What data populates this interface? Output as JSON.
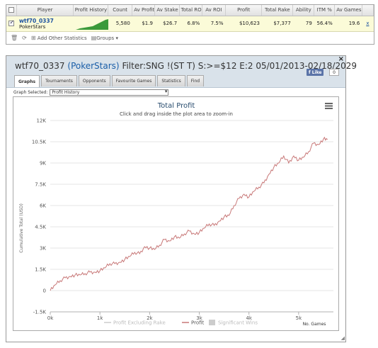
{
  "stats_table": {
    "headers": [
      "Player",
      "Profit History",
      "Count",
      "Av Profit",
      "Av Stake",
      "Total ROI",
      "Av ROI",
      "Profit",
      "Total Rake",
      "Ability",
      "ITM %",
      "Av Games"
    ],
    "row": {
      "player": "wtf70_0337",
      "site": "PokerStars",
      "count": "5,580",
      "av_profit": "$1.9",
      "av_stake": "$26.7",
      "total_roi": "6.8%",
      "av_roi": "7.5%",
      "profit": "$10,623",
      "total_rake": "$7,377",
      "ability": "79",
      "itm": "56.4%",
      "av_games": "19.6",
      "remove": "x"
    },
    "footer": {
      "add_label": "Add Other Statistics",
      "groups_label": "Groups"
    },
    "sparkline_color": "#3b9a3b"
  },
  "window": {
    "title_player": "wtf70_0337",
    "title_site": "(PokerStars)",
    "title_filter": "Filter:SNG !(ST T) S:>=$12 E:2 05/01/2013-02/18/2029",
    "close_label": "×",
    "fb_like": "Like",
    "fb_count": "0",
    "tabs": [
      "Graphs",
      "Tournaments",
      "Opponents",
      "Favourite Games",
      "Statistics",
      "Find"
    ],
    "graph_selected_label": "Graph Selected:",
    "graph_selected_value": "Profit History"
  },
  "chart_data": {
    "type": "line",
    "title": "Total Profit",
    "subtitle": "Click and drag inside the plot area to zoom-in",
    "ylabel": "Cumulative Total (USD)",
    "xlabel": "No. Games",
    "ylim": [
      -1500,
      12000
    ],
    "xlim": [
      0,
      5700
    ],
    "yticks": [
      -1500,
      0,
      1500,
      3000,
      4500,
      6000,
      7500,
      9000,
      10500,
      12000
    ],
    "ytick_labels": [
      "-1.5K",
      "0",
      "1.5K",
      "3K",
      "4.5K",
      "6K",
      "7.5K",
      "9K",
      "10.5K",
      "12K"
    ],
    "xticks": [
      0,
      1000,
      2000,
      3000,
      4000,
      5000
    ],
    "xtick_labels": [
      "0k",
      "1k",
      "2k",
      "3k",
      "4k",
      "5k"
    ],
    "grid": true,
    "legend_position": "bottom",
    "series": [
      {
        "name": "Profit",
        "color": "#c87878",
        "x": [
          0,
          100,
          200,
          300,
          400,
          500,
          600,
          700,
          800,
          900,
          1000,
          1100,
          1200,
          1300,
          1400,
          1500,
          1600,
          1700,
          1800,
          1900,
          2000,
          2100,
          2200,
          2300,
          2400,
          2500,
          2600,
          2700,
          2800,
          2900,
          3000,
          3100,
          3200,
          3300,
          3400,
          3500,
          3600,
          3700,
          3800,
          3900,
          4000,
          4100,
          4200,
          4300,
          4400,
          4500,
          4600,
          4700,
          4800,
          4900,
          5000,
          5100,
          5200,
          5300,
          5400,
          5500,
          5580
        ],
        "values": [
          0,
          400,
          700,
          900,
          1000,
          1100,
          1100,
          1200,
          1300,
          1300,
          1400,
          1600,
          1900,
          1900,
          2000,
          2200,
          2400,
          2700,
          2600,
          3100,
          3000,
          2900,
          3200,
          3600,
          3500,
          3800,
          3700,
          4000,
          4200,
          4000,
          4100,
          4400,
          4700,
          4600,
          4900,
          5200,
          5300,
          6000,
          6500,
          6800,
          6600,
          7000,
          7300,
          7600,
          8200,
          8700,
          9000,
          9500,
          9000,
          9500,
          9200,
          9400,
          9800,
          10400,
          10300,
          10700,
          10650
        ]
      }
    ],
    "legend": [
      {
        "label": "Profit Excluding Rake",
        "color": "#cccccc",
        "kind": "line"
      },
      {
        "label": "Profit",
        "color": "#c87878",
        "kind": "line"
      },
      {
        "label": "Significant Wins",
        "color": "#cccccc",
        "kind": "box"
      }
    ]
  }
}
